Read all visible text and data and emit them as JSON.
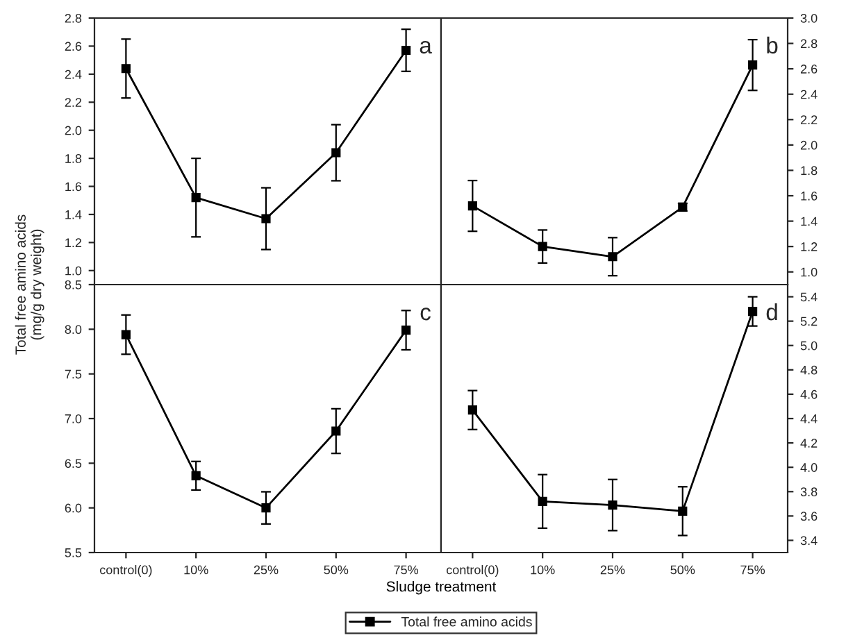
{
  "chart_data": [
    {
      "type": "line",
      "categories": [
        null,
        null,
        null,
        null,
        null
      ],
      "ylabel": "Total free amino acids\n(mg/g dry weight)",
      "annotations": [
        "a"
      ],
      "marker": "square",
      "grid": false,
      "tick_labels": "y",
      "ylim": [
        0.9,
        2.8
      ],
      "yticks": [
        {
          "value": 1,
          "label": "1.0"
        },
        1.2,
        1.4,
        1.6,
        1.8,
        {
          "value": 2,
          "label": "2.0"
        },
        2.2,
        2.4,
        2.6,
        2.8
      ],
      "series": [
        {
          "color": "#000000",
          "values": [
            2.44,
            1.52,
            1.37,
            1.84,
            2.57
          ],
          "errors": [
            0.21,
            0.28,
            0.22,
            0.2,
            0.15
          ]
        }
      ]
    },
    {
      "type": "line",
      "categories": [
        null,
        null,
        null,
        null,
        null
      ],
      "annotations": [
        "b"
      ],
      "marker": "square",
      "grid": false,
      "tick_labels": "y",
      "ylim": [
        0.9,
        3.0
      ],
      "yticks": [
        {
          "value": 1,
          "label": "1.0"
        },
        1.2,
        1.4,
        1.6,
        1.8,
        {
          "value": 2,
          "label": "2.0"
        },
        2.2,
        2.4,
        2.6,
        2.8,
        {
          "value": 3,
          "label": "3.0"
        }
      ],
      "series": [
        {
          "color": "#000000",
          "values": [
            1.52,
            1.2,
            1.12,
            1.51,
            2.63
          ],
          "errors": [
            0.2,
            0.13,
            0.15,
            0.03,
            0.2
          ]
        }
      ]
    },
    {
      "type": "line",
      "categories": [
        "control(0)",
        "10%",
        "25%",
        "50%",
        "75%"
      ],
      "xlabel": "Sludge treatment",
      "annotations": [
        "c"
      ],
      "marker": "square",
      "grid": false,
      "ylim": [
        5.5,
        8.5
      ],
      "yticks": [
        5.5,
        {
          "value": 6,
          "label": "6.0"
        },
        6.5,
        {
          "value": 7,
          "label": "7.0"
        },
        7.5,
        {
          "value": 8,
          "label": "8.0"
        },
        8.5
      ],
      "series": [
        {
          "color": "#000000",
          "values": [
            7.94,
            6.36,
            6.0,
            6.86,
            7.99
          ],
          "errors": [
            0.22,
            0.16,
            0.18,
            0.25,
            0.22
          ]
        }
      ]
    },
    {
      "type": "line",
      "categories": [
        "control(0)",
        "10%",
        "25%",
        "50%",
        "75%"
      ],
      "annotations": [
        "d"
      ],
      "marker": "square",
      "grid": false,
      "legend": "bottom",
      "ylim": [
        3.3,
        5.5
      ],
      "yticks": [
        3.4,
        3.6,
        3.8,
        {
          "value": 4,
          "label": "4.0"
        },
        4.2,
        4.4,
        4.6,
        4.8,
        {
          "value": 5,
          "label": "5.0"
        },
        5.2,
        5.4
      ],
      "series": [
        {
          "name": "Total free amino acids",
          "color": "#000000",
          "values": [
            4.47,
            3.72,
            3.69,
            3.64,
            5.28
          ],
          "errors": [
            0.16,
            0.22,
            0.21,
            0.2,
            0.12
          ]
        }
      ]
    }
  ]
}
